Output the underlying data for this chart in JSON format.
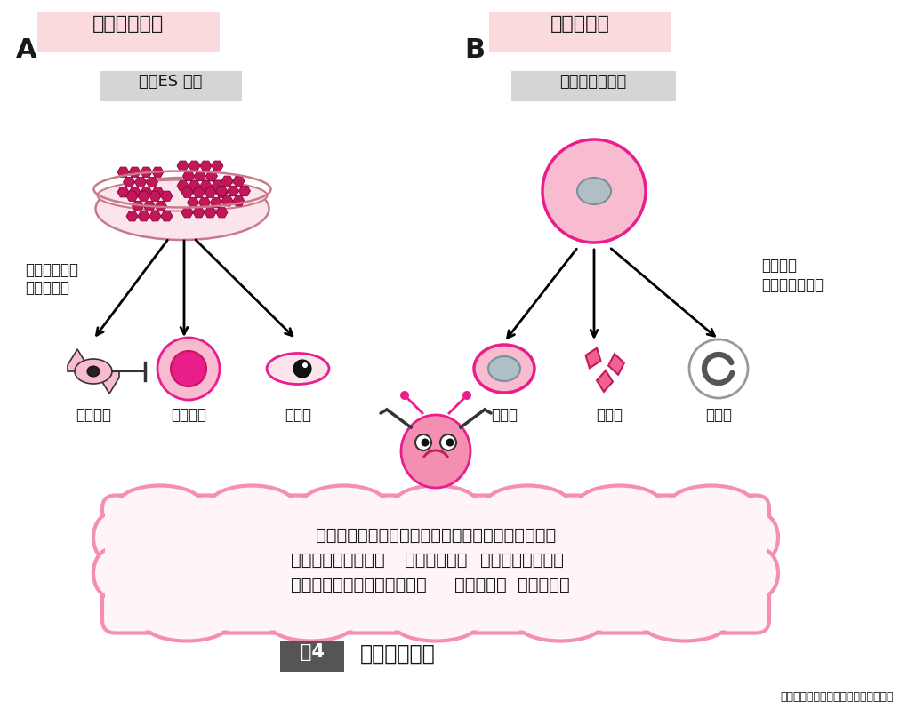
{
  "bg_color": "#ffffff",
  "pink_label_bg": "#fadadd",
  "pink_medium": "#f48fb1",
  "pink_dark": "#e91e8c",
  "pink_cell": "#f8bbd0",
  "pink_colony": "#c2185b",
  "pink_colony_ec": "#8b0032",
  "pink_deep": "#ec407a",
  "pink_bubble_bg": "#fff5f8",
  "pink_bubble_border": "#f48fb1",
  "gray_example_bg": "#d5d5d5",
  "gray_nucleus": "#b0bec5",
  "gray_nucleus_ec": "#78909c",
  "dark_text": "#1a1a1a",
  "arrow_color": "#111111",
  "label_A": "A",
  "label_B": "B",
  "title_A": "多能性幹細胞",
  "title_B": "組織幹細胞",
  "example_A": "例：ES 細胞",
  "example_B": "例：造血幹細胞",
  "left_note_1": "全身の細胞種",
  "left_note_2": "へ分化する",
  "right_note_1": "血液細胞",
  "right_note_2": "にのみ分化する",
  "cells_A": [
    "神経細胞",
    "血液細胞",
    "肝細胞"
  ],
  "cells_B": [
    "赤血球",
    "血小板",
    "白血球"
  ],
  "bubble_line1": "幹細胞には，大きく分けて個体を構成するすべての",
  "bubble_line2_p1": "細胞種へ分化可能な",
  "bubble_line2_bold": "多能性幹細胞",
  "bubble_line2_p2": "と所属する臓器の",
  "bubble_line3_p1": "構成細胞種へのみ分化可能な",
  "bubble_line3_bold": "組織幹細胞",
  "bubble_line3_p2": "があります",
  "fig_label": "围4",
  "fig_title": "幹細胞の種類",
  "source_text": "もっとよくわかる！幹細胞と再生医療"
}
